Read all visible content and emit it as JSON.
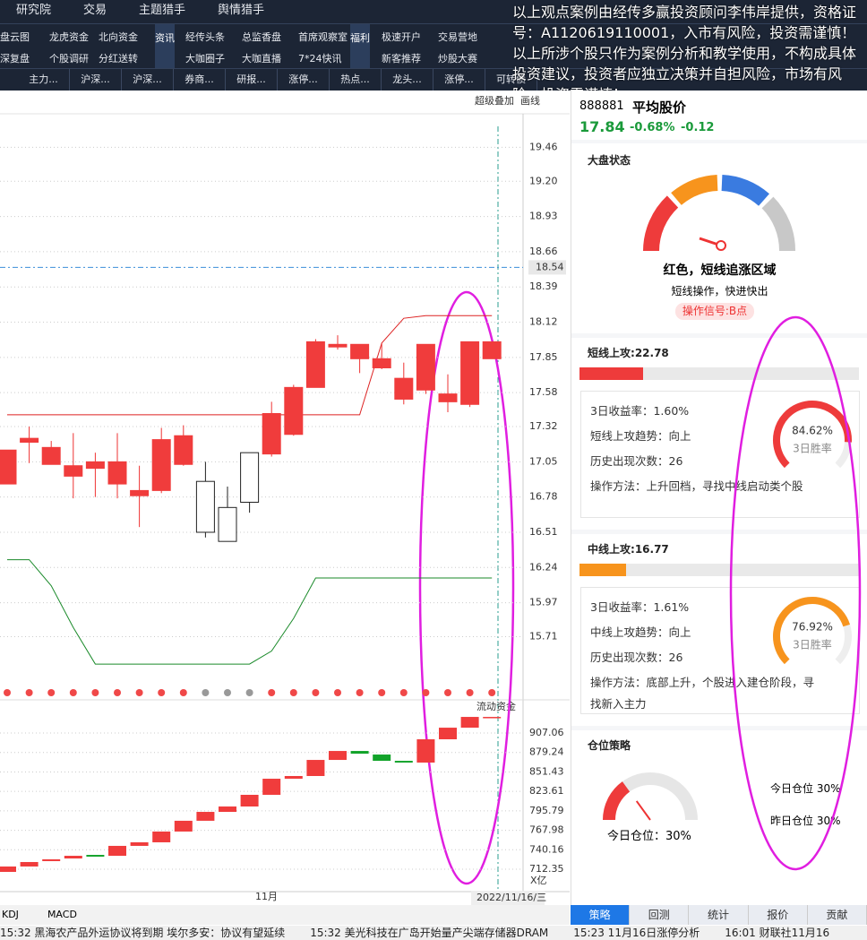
{
  "menu": [
    "研究院",
    "交易",
    "主题猎手",
    "舆情猎手"
  ],
  "notice": "以上观点案例由经传多赢投资顾问李伟岸提供，资格证号：A1120619110001，入市有风险，投资需谨慎！以上所涉个股只作为案例分析和教学使用，不构成具体投资建议，投资者应独立决策并自担风险，市场有风险，投资需谨慎！",
  "nav": {
    "group1": [
      [
        "盘云图",
        "龙虎资金",
        "北向资金"
      ],
      [
        "深复盘",
        "个股调研",
        "分红送转"
      ]
    ],
    "label2": "资讯",
    "group2": [
      [
        "经传头条",
        "总监香盘",
        "首席观察室"
      ],
      [
        "大咖圈子",
        "大咖直播",
        "7*24快讯"
      ]
    ],
    "label3": "福利",
    "group3": [
      [
        "极速开户",
        "交易营地"
      ],
      [
        "新客推荐",
        "炒股大赛"
      ]
    ]
  },
  "tabs": [
    "主力...",
    "沪深...",
    "沪深...",
    "券商...",
    "研报...",
    "涨停...",
    "热点...",
    "龙头...",
    "涨停...",
    "可转债"
  ],
  "toolbar": [
    "超级叠加",
    "画线"
  ],
  "price_chart": {
    "type": "candlestick",
    "ylim": [
      15.37,
      19.71
    ],
    "yticks": [
      19.46,
      {
        "value": 19.2,
        "label": "19.20"
      },
      18.93,
      18.66,
      18.39,
      18.12,
      17.85,
      17.58,
      17.32,
      17.05,
      16.78,
      16.51,
      16.24,
      15.97,
      15.71
    ],
    "current": 18.54,
    "candles": [
      {
        "o": 16.88,
        "c": 17.14,
        "h": 17.14,
        "l": 16.88
      },
      {
        "o": 17.2,
        "c": 17.23,
        "h": 17.32,
        "l": 17.04
      },
      {
        "o": 17.03,
        "c": 17.16,
        "h": 17.21,
        "l": 17.03
      },
      {
        "o": 16.94,
        "c": 17.02,
        "h": 17.27,
        "l": 16.77
      },
      {
        "o": 17.0,
        "c": 17.05,
        "h": 17.12,
        "l": 16.78
      },
      {
        "o": 16.88,
        "c": 17.05,
        "h": 17.27,
        "l": 16.77
      },
      {
        "o": 16.79,
        "c": 16.83,
        "h": 17.02,
        "l": 16.55
      },
      {
        "o": 16.83,
        "c": 17.22,
        "h": 17.31,
        "l": 16.81
      },
      {
        "o": 17.03,
        "c": 17.25,
        "h": 17.33,
        "l": 17.02
      },
      {
        "o": 16.9,
        "c": 16.51,
        "h": 17.05,
        "l": 16.47
      },
      {
        "o": 16.7,
        "c": 16.44,
        "h": 16.86,
        "l": 16.44
      },
      {
        "o": 17.12,
        "c": 16.74,
        "h": 17.12,
        "l": 16.66
      },
      {
        "o": 17.11,
        "c": 17.42,
        "h": 17.51,
        "l": 17.09
      },
      {
        "o": 17.26,
        "c": 17.62,
        "h": 17.64,
        "l": 17.25
      },
      {
        "o": 17.62,
        "c": 17.97,
        "h": 17.99,
        "l": 17.62
      },
      {
        "o": 17.93,
        "c": 17.95,
        "h": 18.02,
        "l": 17.91
      },
      {
        "o": 17.84,
        "c": 17.95,
        "h": 17.95,
        "l": 17.73
      },
      {
        "o": 17.77,
        "c": 17.84,
        "h": 17.96,
        "l": 17.76
      },
      {
        "o": 17.53,
        "c": 17.69,
        "h": 17.81,
        "l": 17.49
      },
      {
        "o": 17.6,
        "c": 17.95,
        "h": 17.95,
        "l": 17.57
      },
      {
        "o": 17.51,
        "c": 17.57,
        "h": 17.72,
        "l": 17.43
      },
      {
        "o": 17.49,
        "c": 17.97,
        "h": 17.97,
        "l": 17.47
      },
      {
        "o": 17.84,
        "c": 17.97,
        "h": 17.97,
        "l": 17.84
      }
    ],
    "upper": [
      17.41,
      17.41,
      17.41,
      17.41,
      17.41,
      17.41,
      17.41,
      17.41,
      17.41,
      17.41,
      17.41,
      17.41,
      17.41,
      17.41,
      17.41,
      17.41,
      17.41,
      17.96,
      18.15,
      18.17,
      18.17,
      18.17,
      18.17
    ],
    "lower": [
      16.3,
      16.3,
      16.1,
      15.78,
      15.5,
      15.5,
      15.5,
      15.5,
      15.5,
      15.5,
      15.5,
      15.5,
      15.6,
      15.85,
      16.16,
      16.16,
      16.16,
      16.16,
      16.16,
      16.16,
      16.16,
      16.16,
      16.16
    ]
  },
  "fund_chart": {
    "type": "floating-bar",
    "title": "流动资金",
    "unit": "X亿",
    "ylim": [
      680.3,
      954.5
    ],
    "yticks": [
      907.06,
      879.24,
      851.43,
      823.61,
      795.79,
      767.98,
      740.16,
      712.35
    ],
    "bars": [
      [
        708.5,
        716.2
      ],
      [
        716.2,
        722.6
      ],
      [
        723.9,
        726.5
      ],
      [
        727.7,
        731.5
      ],
      [
        732.8,
        730.3
      ],
      [
        731.5,
        745.7
      ],
      [
        745.7,
        750.8
      ],
      [
        750.8,
        766.2
      ],
      [
        766.2,
        781.6
      ],
      [
        781.6,
        794.3
      ],
      [
        794.3,
        802.0
      ],
      [
        802.0,
        818.7
      ],
      [
        818.7,
        841.7
      ],
      [
        841.7,
        845.6
      ],
      [
        845.6,
        868.6
      ],
      [
        868.6,
        881.4
      ],
      [
        881.4,
        877.5
      ],
      [
        876.3,
        867.3
      ],
      [
        867.3,
        864.8
      ],
      [
        864.8,
        898.1
      ],
      [
        898.1,
        914.7
      ],
      [
        914.7,
        930.1
      ],
      [
        929.0,
        930.1
      ]
    ]
  },
  "x_axis": {
    "month": "11月",
    "date": "2022/11/16/三"
  },
  "indicators": [
    "KDJ",
    "MACD"
  ],
  "ticker": [
    "15:32 黑海农产品外运协议将到期 埃尔多安：协议有望延续",
    "15:32 美光科技在广岛开始量产尖端存储器DRAM",
    "15:23 11月16日涨停分析",
    "16:01 财联社11月16"
  ],
  "panel": {
    "code": "888881",
    "name": "平均股价",
    "price": "17.84",
    "pct": "-0.68%",
    "chg": "-0.12",
    "market": {
      "title": "大盘状态",
      "state": "红色，短线追涨区域",
      "advice": "短线操作，快进快出",
      "signal": "操作信号:B点"
    },
    "short": {
      "label": "短线上攻:",
      "score": 22.78,
      "lines": [
        "3日收益率：1.60%",
        "短线上攻趋势：向上",
        "历史出现次数：26",
        "操作方法：上升回档，寻找中线启动类个股"
      ],
      "rate": 84.62,
      "rate_label": "84.62%",
      "rate_name": "3日胜率"
    },
    "mid": {
      "label": "中线上攻:",
      "score": 16.77,
      "lines": [
        "3日收益率：1.61%",
        "中线上攻趋势：向上",
        "历史出现次数：26",
        "操作方法：底部上升，个股进入建仓阶段，寻找新入主力"
      ],
      "rate": 76.92,
      "rate_label": "76.92%",
      "rate_name": "3日胜率"
    },
    "position": {
      "title": "仓位策略",
      "gauge": "今日仓位：30%",
      "today": "今日仓位 30%",
      "yesterday": "昨日仓位 30%"
    },
    "tabs": [
      "策略",
      "回测",
      "统计",
      "报价",
      "贡献"
    ]
  }
}
